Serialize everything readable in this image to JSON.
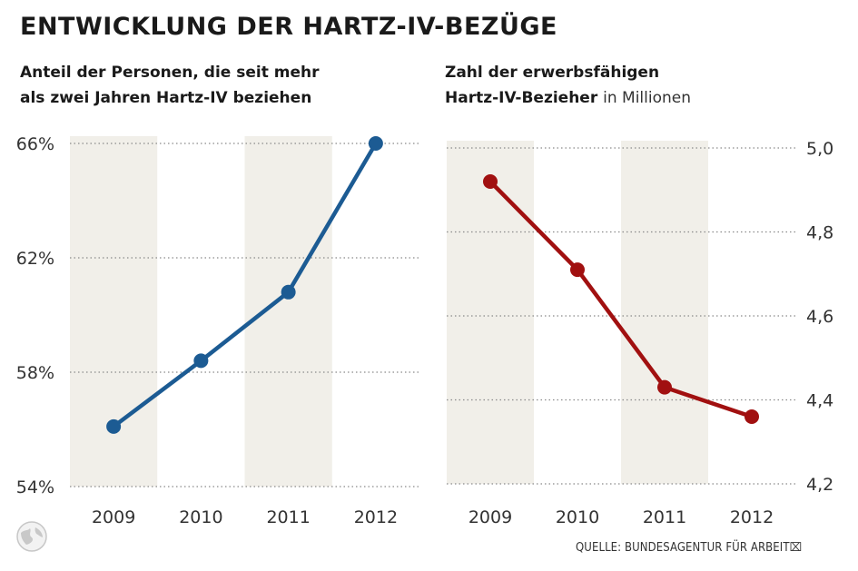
{
  "title": "ENTWICKLUNG DER HARTZ-IV-BEZÜGE",
  "source": "QUELLE: BUNDESAGENTUR FÜR ARBEIT",
  "colors": {
    "blue": "#1c5b93",
    "red": "#a11010",
    "band": "#f1efe9",
    "grid": "#8a8a8a"
  },
  "chart_data": [
    {
      "type": "line",
      "title_lines": [
        "Anteil der Personen, die seit mehr",
        "als zwei Jahren Hartz-IV beziehen"
      ],
      "x": [
        "2009",
        "2010",
        "2011",
        "2012"
      ],
      "series": [
        {
          "values": [
            56.1,
            58.4,
            60.8,
            66.0
          ]
        }
      ],
      "ylim": [
        54,
        66
      ],
      "yticks": [
        "54%",
        "58%",
        "62%",
        "66%"
      ],
      "grid": true,
      "alternating_bands": true
    },
    {
      "type": "line",
      "title": "Zahl der erwerbsfähigen",
      "title_bold_2": "Hartz-IV-Bezieher",
      "title_unit": "in Millionen",
      "x": [
        "2009",
        "2010",
        "2011",
        "2012"
      ],
      "series": [
        {
          "values": [
            4.92,
            4.71,
            4.43,
            4.36
          ]
        }
      ],
      "ylim": [
        4.2,
        5.0
      ],
      "yticks": [
        "4,2",
        "4,4",
        "4,6",
        "4,8",
        "5,0"
      ],
      "grid": true,
      "alternating_bands": true
    }
  ]
}
